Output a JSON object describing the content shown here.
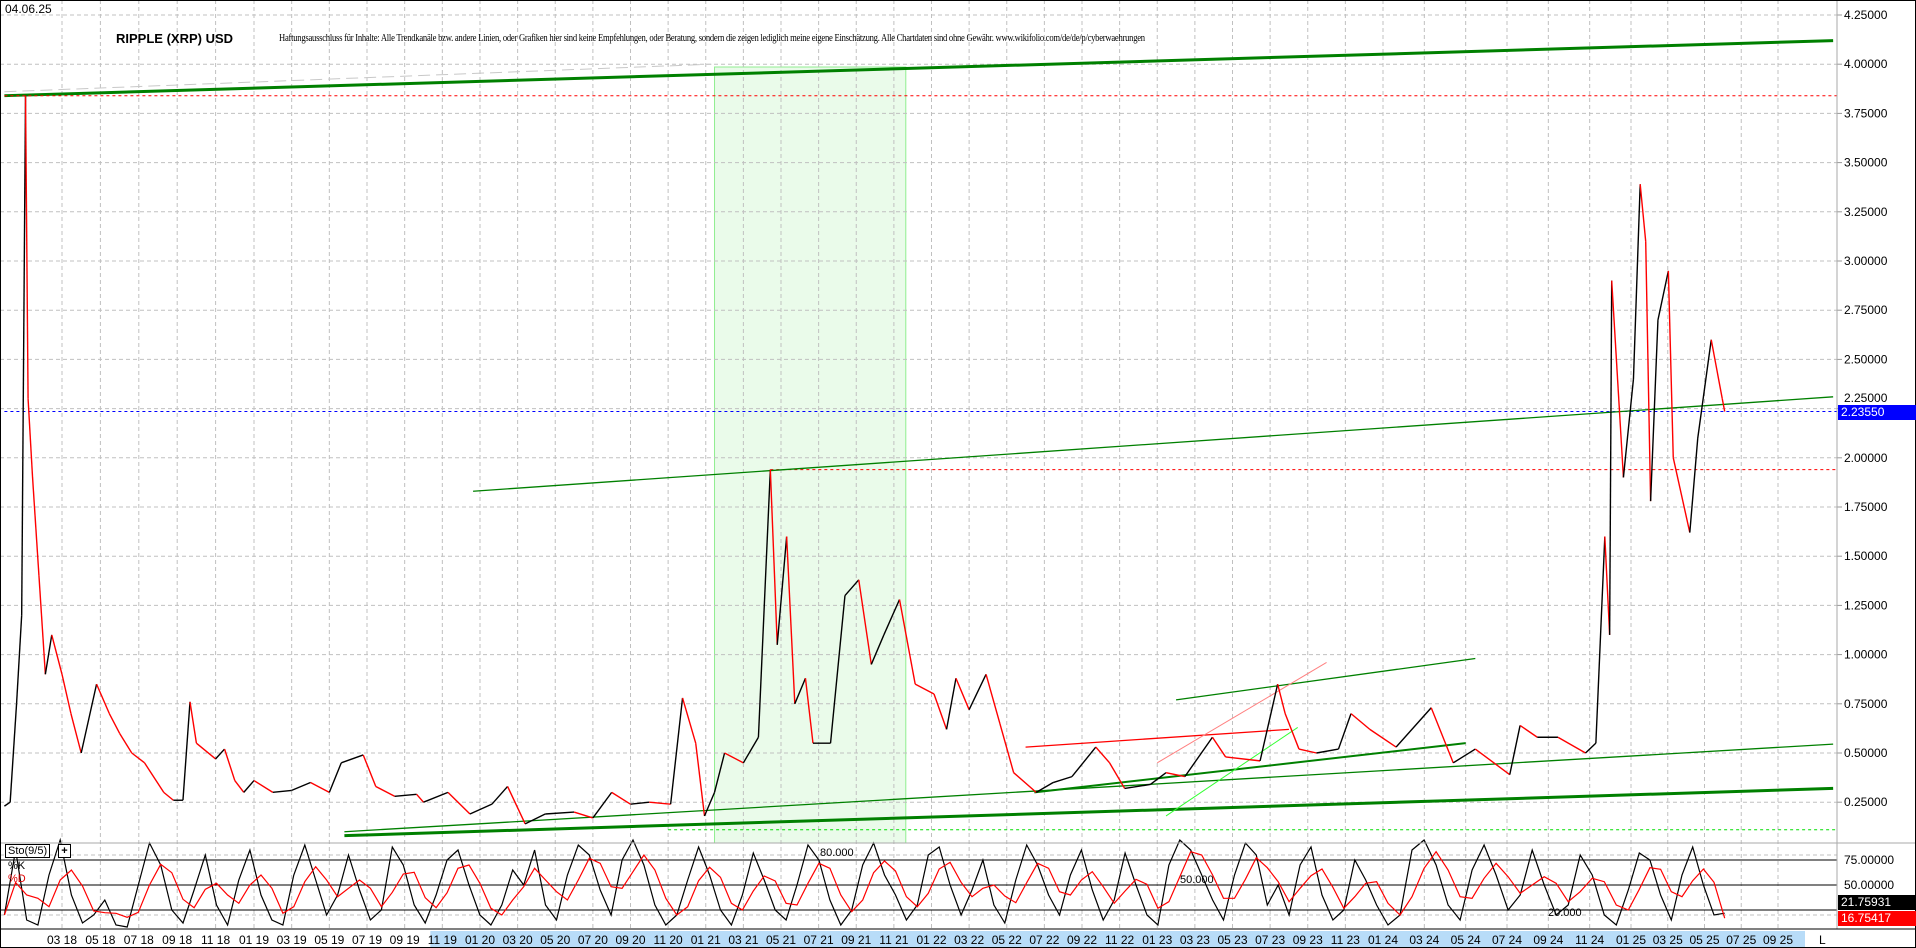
{
  "header": {
    "date": "04.06.25",
    "title": "RIPPLE (XRP) USD",
    "disclaimer": "Haftungsausschluss für Inhalte: Alle Trendkanäle bzw. andere Linien, oder Grafiken hier sind keine Empfehlungen, oder Beratung, sondern die zeigen lediglich meine eigene Einschätzung. Alle Chartdaten sind ohne Gewähr.  www.wikifolio.com/de/de/p/cyberwaehrungen"
  },
  "colors": {
    "up": "#000000",
    "down": "#ff0000",
    "trend": "#008000",
    "trend_light": "#33ff33",
    "last_price_bg": "#0000ff",
    "k_line": "#000000",
    "d_line": "#ff0000",
    "zone": "#eafbea",
    "axis_highlight": "#b8dcf8"
  },
  "chart_data": [
    {
      "type": "line",
      "title": "RIPPLE (XRP) USD",
      "ylim": [
        0.0,
        4.3
      ],
      "grid": true,
      "y_ticks": [
        "4.25000",
        "4.00000",
        "3.75000",
        "3.50000",
        "3.25000",
        "3.00000",
        "2.75000",
        "2.50000",
        "2.25000",
        "2.00000",
        "1.75000",
        "1.50000",
        "1.25000",
        "1.00000",
        "0.75000",
        "0.50000",
        "0.25000"
      ],
      "x_ticks": [
        "03 18",
        "05 18",
        "07 18",
        "09 18",
        "11 18",
        "01 19",
        "03 19",
        "05 19",
        "07 19",
        "09 19",
        "11 19",
        "01 20",
        "03 20",
        "05 20",
        "07 20",
        "09 20",
        "11 20",
        "01 21",
        "03 21",
        "05 21",
        "07 21",
        "09 21",
        "11 21",
        "01 22",
        "03 22",
        "05 22",
        "07 22",
        "09 22",
        "11 22",
        "01 23",
        "03 23",
        "05 23",
        "07 23",
        "09 23",
        "11 23",
        "01 24",
        "03 24",
        "05 24",
        "07 24",
        "09 24",
        "11 24",
        "01 25",
        "03 25",
        "05 25",
        "07 25",
        "09 25"
      ],
      "x_end_label": "L",
      "last_price": "2.23550",
      "series": [
        {
          "x": [
            "2017-12-01",
            "2017-12-10",
            "2017-12-20",
            "2017-12-28",
            "2018-01-04",
            "2018-01-08",
            "2018-01-15",
            "2018-01-25",
            "2018-02-05",
            "2018-02-15",
            "2018-03-01",
            "2018-03-15",
            "2018-04-01",
            "2018-04-25",
            "2018-05-15",
            "2018-06-01",
            "2018-06-20",
            "2018-07-10",
            "2018-08-10",
            "2018-08-25",
            "2018-09-10",
            "2018-09-21",
            "2018-10-01",
            "2018-11-01",
            "2018-11-15",
            "2018-12-01",
            "2018-12-15",
            "2019-01-01",
            "2019-02-01",
            "2019-03-01",
            "2019-04-01",
            "2019-05-01",
            "2019-05-20",
            "2019-06-25",
            "2019-07-15",
            "2019-08-15",
            "2019-09-20",
            "2019-10-01",
            "2019-11-10",
            "2019-12-15",
            "2020-01-20",
            "2020-02-15",
            "2020-03-13",
            "2020-04-15",
            "2020-06-01",
            "2020-07-01",
            "2020-08-01",
            "2020-09-01",
            "2020-10-01",
            "2020-11-05",
            "2020-11-24",
            "2020-12-15",
            "2020-12-29",
            "2021-01-15",
            "2021-02-01",
            "2021-03-01",
            "2021-03-25",
            "2021-04-14",
            "2021-04-25",
            "2021-05-10",
            "2021-05-23",
            "2021-06-10",
            "2021-06-22",
            "2021-07-20",
            "2021-08-13",
            "2021-09-05",
            "2021-09-25",
            "2021-10-15",
            "2021-11-10",
            "2021-12-05",
            "2022-01-05",
            "2022-01-25",
            "2022-02-10",
            "2022-03-01",
            "2022-03-28",
            "2022-04-20",
            "2022-05-12",
            "2022-06-18",
            "2022-07-15",
            "2022-08-15",
            "2022-09-23",
            "2022-10-15",
            "2022-11-09",
            "2022-12-20",
            "2023-01-15",
            "2023-02-15",
            "2023-03-29",
            "2023-04-20",
            "2023-06-15",
            "2023-07-13",
            "2023-07-25",
            "2023-08-17",
            "2023-09-15",
            "2023-10-20",
            "2023-11-10",
            "2023-12-10",
            "2024-01-20",
            "2024-03-11",
            "2024-04-13",
            "2024-05-15",
            "2024-07-05",
            "2024-07-20",
            "2024-08-15",
            "2024-09-15",
            "2024-10-25",
            "2024-11-10",
            "2024-11-23",
            "2024-11-30",
            "2024-12-03",
            "2024-12-20",
            "2025-01-05",
            "2025-01-16",
            "2025-01-25",
            "2025-02-03",
            "2025-02-15",
            "2025-03-02",
            "2025-03-10",
            "2025-04-07",
            "2025-04-20",
            "2025-05-12",
            "2025-05-30",
            "2025-06-04"
          ],
          "y": [
            0.23,
            0.25,
            0.75,
            1.2,
            3.84,
            2.3,
            1.9,
            1.4,
            0.9,
            1.1,
            0.9,
            0.7,
            0.5,
            0.85,
            0.7,
            0.6,
            0.5,
            0.45,
            0.3,
            0.26,
            0.26,
            0.76,
            0.55,
            0.47,
            0.52,
            0.36,
            0.3,
            0.36,
            0.3,
            0.31,
            0.35,
            0.3,
            0.45,
            0.49,
            0.33,
            0.28,
            0.29,
            0.25,
            0.3,
            0.19,
            0.24,
            0.33,
            0.14,
            0.19,
            0.2,
            0.17,
            0.3,
            0.24,
            0.25,
            0.24,
            0.78,
            0.55,
            0.18,
            0.3,
            0.5,
            0.45,
            0.58,
            1.94,
            1.05,
            1.6,
            0.75,
            0.88,
            0.55,
            0.55,
            1.3,
            1.38,
            0.95,
            1.1,
            1.28,
            0.85,
            0.8,
            0.62,
            0.88,
            0.72,
            0.9,
            0.65,
            0.4,
            0.3,
            0.35,
            0.38,
            0.53,
            0.45,
            0.32,
            0.34,
            0.4,
            0.38,
            0.58,
            0.48,
            0.46,
            0.85,
            0.7,
            0.52,
            0.5,
            0.52,
            0.7,
            0.62,
            0.53,
            0.73,
            0.45,
            0.52,
            0.39,
            0.64,
            0.58,
            0.58,
            0.5,
            0.55,
            1.6,
            1.1,
            2.9,
            1.9,
            2.4,
            3.39,
            3.1,
            1.78,
            2.7,
            2.95,
            2.0,
            1.62,
            2.1,
            2.6,
            2.3,
            2.2355
          ]
        }
      ],
      "lines": [
        {
          "kind": "trend",
          "from": [
            "2017-12-01",
            3.84
          ],
          "to": [
            "2025-12-01",
            4.12
          ],
          "weight": "thick"
        },
        {
          "kind": "trend-gray",
          "from": [
            "2017-12-01",
            3.86
          ],
          "to": [
            "2021-01-10",
            4.0
          ],
          "weight": "dashed"
        },
        {
          "kind": "hline-red",
          "y": 3.84,
          "from": "2017-12-01"
        },
        {
          "kind": "hline-blue",
          "y": 2.2355,
          "from": "2017-12-01"
        },
        {
          "kind": "hline-red",
          "y": 1.94,
          "from": "2021-04-14"
        },
        {
          "kind": "hline-lime",
          "y": 0.11,
          "from": "2020-11-01"
        },
        {
          "kind": "trend",
          "from": [
            "2019-12-20",
            1.83
          ],
          "to": [
            "2025-12-01",
            2.31
          ],
          "weight": "thin"
        },
        {
          "kind": "trend",
          "from": [
            "2019-05-25",
            0.08
          ],
          "to": [
            "2025-12-01",
            0.32
          ],
          "weight": "thick"
        },
        {
          "kind": "trend",
          "from": [
            "2019-05-25",
            0.1
          ],
          "to": [
            "2025-12-01",
            0.545
          ],
          "weight": "thin"
        },
        {
          "kind": "trend",
          "from": [
            "2022-06-15",
            0.3
          ],
          "to": [
            "2024-05-01",
            0.55
          ],
          "weight": "medium"
        },
        {
          "kind": "trend",
          "from": [
            "2023-02-01",
            0.77
          ],
          "to": [
            "2024-05-15",
            0.98
          ],
          "weight": "thin"
        },
        {
          "kind": "trend-red",
          "from": [
            "2022-06-01",
            0.53
          ],
          "to": [
            "2023-08-01",
            0.62
          ],
          "weight": "thin"
        },
        {
          "kind": "trend-lightred",
          "from": [
            "2023-01-01",
            0.45
          ],
          "to": [
            "2023-10-01",
            0.96
          ],
          "weight": "thin"
        },
        {
          "kind": "trend-lightgreen",
          "from": [
            "2023-01-15",
            0.18
          ],
          "to": [
            "2023-08-15",
            0.63
          ],
          "weight": "thin"
        }
      ],
      "zone": {
        "from": "2021-01-15",
        "to": "2021-11-20"
      }
    },
    {
      "type": "line",
      "title": "Sto(9/5)",
      "ylim": [
        0,
        100
      ],
      "levels": [
        {
          "value": 75,
          "label": "75.00000"
        },
        {
          "value": 50,
          "label": "50.00000"
        },
        {
          "value": 25,
          "label": ""
        }
      ],
      "dashed_levels": [
        {
          "value": 80,
          "label": "80.000"
        },
        {
          "value": 20,
          "label": "20.000"
        }
      ],
      "mid_label": "50.000",
      "legend": {
        "k": "%K",
        "d": "%D",
        "add": "+"
      },
      "last_k": "21.75931",
      "last_d": "16.75417",
      "k": [
        20,
        85,
        15,
        10,
        60,
        95,
        40,
        12,
        20,
        35,
        10,
        8,
        50,
        92,
        70,
        25,
        12,
        45,
        80,
        30,
        10,
        55,
        85,
        40,
        15,
        10,
        60,
        90,
        55,
        20,
        40,
        80,
        45,
        15,
        25,
        88,
        70,
        30,
        12,
        40,
        75,
        85,
        50,
        20,
        10,
        30,
        65,
        50,
        85,
        30,
        15,
        60,
        90,
        80,
        45,
        20,
        75,
        95,
        70,
        30,
        10,
        20,
        55,
        88,
        60,
        25,
        10,
        40,
        82,
        55,
        25,
        15,
        50,
        90,
        75,
        35,
        10,
        25,
        70,
        92,
        60,
        40,
        15,
        30,
        80,
        88,
        50,
        20,
        45,
        75,
        30,
        12,
        55,
        90,
        70,
        40,
        20,
        60,
        85,
        45,
        15,
        35,
        82,
        50,
        20,
        10,
        70,
        95,
        85,
        60,
        35,
        15,
        60,
        92,
        80,
        30,
        50,
        20,
        70,
        88,
        40,
        15,
        25,
        75,
        55,
        30,
        10,
        20,
        85,
        95,
        70,
        30,
        15,
        65,
        90,
        60,
        25,
        40,
        85,
        50,
        20,
        30,
        80,
        60,
        20,
        10,
        45,
        82,
        75,
        40,
        15,
        60,
        88,
        50,
        20,
        21.76
      ]
    }
  ]
}
